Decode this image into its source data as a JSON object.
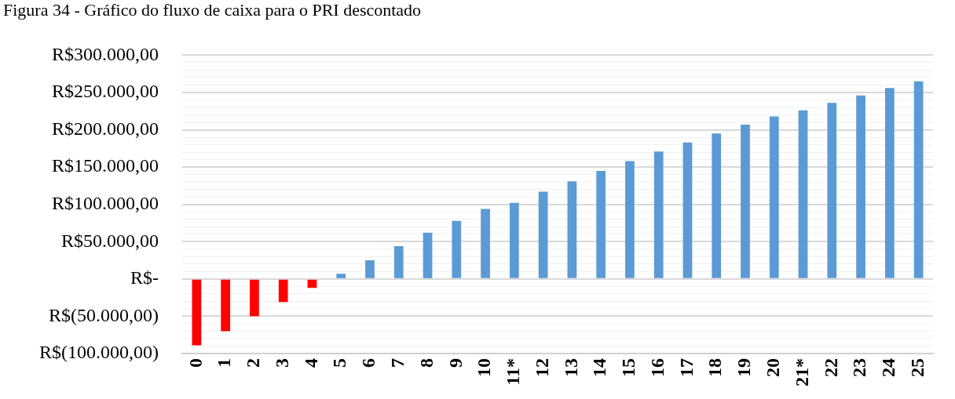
{
  "chart_data": {
    "type": "bar",
    "title": "Figura 34 - Gráfico do fluxo de caixa para o PRI descontado",
    "categories": [
      "0",
      "1",
      "2",
      "3",
      "4",
      "5",
      "6",
      "7",
      "8",
      "9",
      "10",
      "11*",
      "12",
      "13",
      "14",
      "15",
      "16",
      "17",
      "18",
      "19",
      "20",
      "21*",
      "22",
      "23",
      "24",
      "25"
    ],
    "values": [
      -89000,
      -70000,
      -50000,
      -31000,
      -12000,
      7000,
      25000,
      44000,
      62000,
      78000,
      94000,
      102000,
      117000,
      131000,
      145000,
      158000,
      171000,
      183000,
      195000,
      207000,
      218000,
      226000,
      236000,
      246000,
      256000,
      265000
    ],
    "colors": [
      "#ff0000",
      "#ff0000",
      "#ff0000",
      "#ff0000",
      "#ff0000",
      "#5b9bd5",
      "#5b9bd5",
      "#5b9bd5",
      "#5b9bd5",
      "#5b9bd5",
      "#5b9bd5",
      "#5b9bd5",
      "#5b9bd5",
      "#5b9bd5",
      "#5b9bd5",
      "#5b9bd5",
      "#5b9bd5",
      "#5b9bd5",
      "#5b9bd5",
      "#5b9bd5",
      "#5b9bd5",
      "#5b9bd5",
      "#5b9bd5",
      "#5b9bd5",
      "#5b9bd5",
      "#5b9bd5"
    ],
    "ylim": [
      -100000,
      300000
    ],
    "yticks": [
      {
        "value": -100000,
        "label": "R$(100.000,00)"
      },
      {
        "value": -90000,
        "label": null
      },
      {
        "value": -80000,
        "label": null
      },
      {
        "value": -70000,
        "label": null
      },
      {
        "value": -60000,
        "label": null
      },
      {
        "value": -50000,
        "label": "R$(50.000,00)"
      },
      {
        "value": -40000,
        "label": null
      },
      {
        "value": -30000,
        "label": null
      },
      {
        "value": -20000,
        "label": null
      },
      {
        "value": -10000,
        "label": null
      },
      {
        "value": 0,
        "label": "R$-"
      },
      {
        "value": 10000,
        "label": null
      },
      {
        "value": 20000,
        "label": null
      },
      {
        "value": 30000,
        "label": null
      },
      {
        "value": 40000,
        "label": null
      },
      {
        "value": 50000,
        "label": "R$50.000,00"
      },
      {
        "value": 60000,
        "label": null
      },
      {
        "value": 70000,
        "label": null
      },
      {
        "value": 80000,
        "label": null
      },
      {
        "value": 90000,
        "label": null
      },
      {
        "value": 100000,
        "label": "R$100.000,00"
      },
      {
        "value": 110000,
        "label": null
      },
      {
        "value": 120000,
        "label": null
      },
      {
        "value": 130000,
        "label": null
      },
      {
        "value": 140000,
        "label": null
      },
      {
        "value": 150000,
        "label": "R$150.000,00"
      },
      {
        "value": 160000,
        "label": null
      },
      {
        "value": 170000,
        "label": null
      },
      {
        "value": 180000,
        "label": null
      },
      {
        "value": 190000,
        "label": null
      },
      {
        "value": 200000,
        "label": "R$200.000,00"
      },
      {
        "value": 210000,
        "label": null
      },
      {
        "value": 220000,
        "label": null
      },
      {
        "value": 230000,
        "label": null
      },
      {
        "value": 240000,
        "label": null
      },
      {
        "value": 250000,
        "label": "R$250.000,00"
      },
      {
        "value": 260000,
        "label": null
      },
      {
        "value": 270000,
        "label": null
      },
      {
        "value": 280000,
        "label": null
      },
      {
        "value": 290000,
        "label": null
      },
      {
        "value": 300000,
        "label": "R$300.000,00"
      }
    ],
    "grid": "y"
  }
}
